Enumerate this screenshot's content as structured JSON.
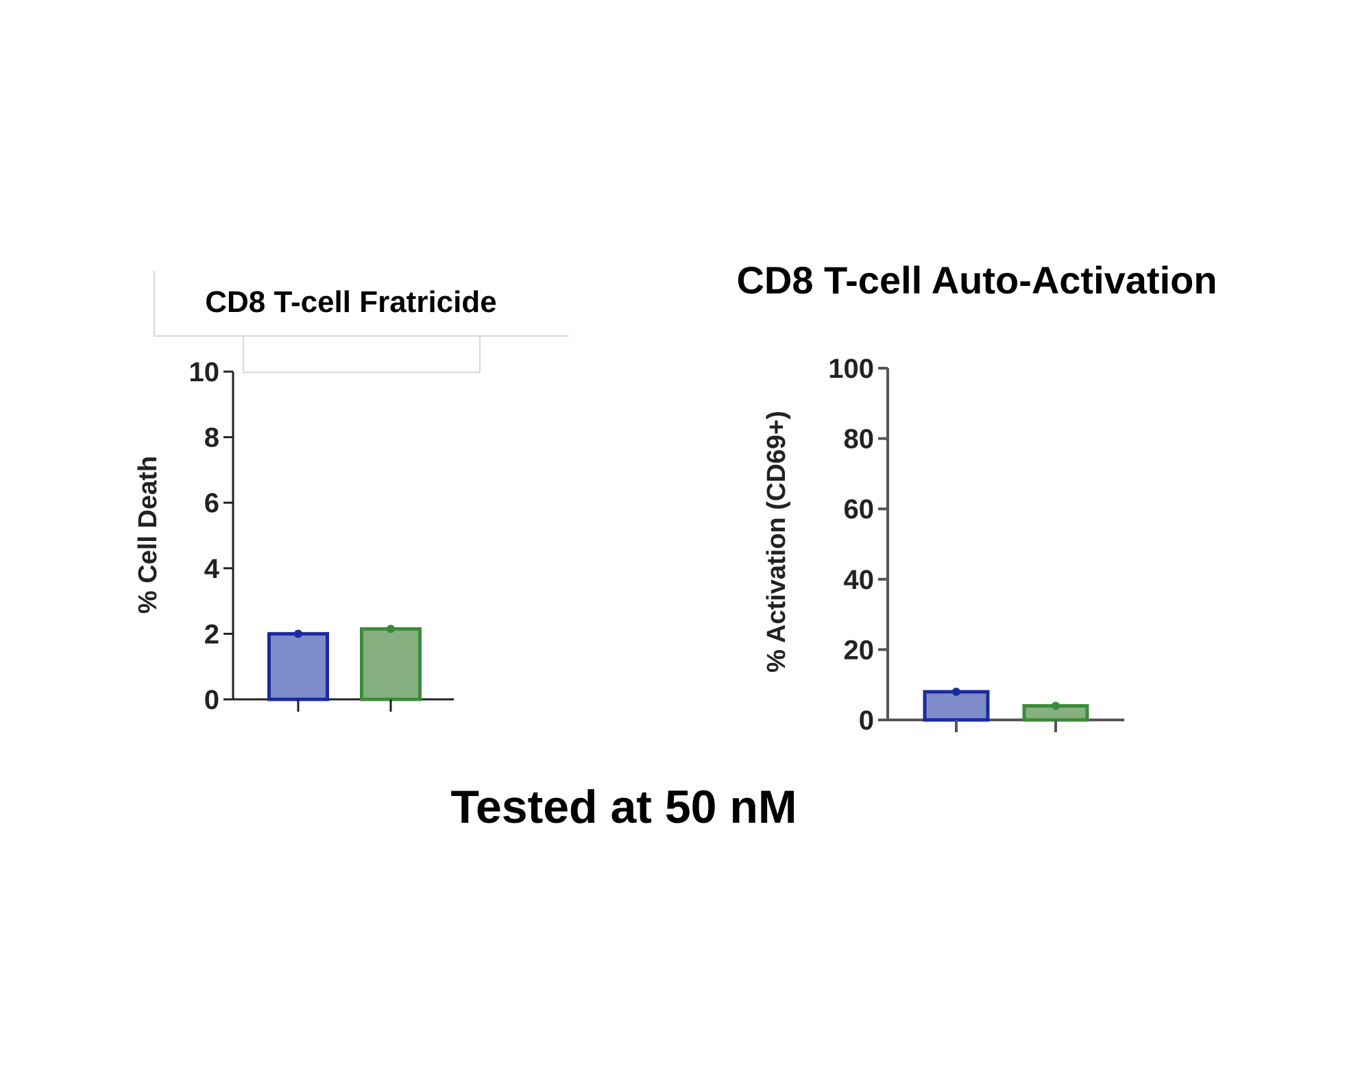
{
  "figure_caption": "Tested at 50 nM",
  "chart_data": [
    {
      "type": "bar",
      "title": "CD8 T-cell Fratricide",
      "xlabel": "",
      "ylabel": "% Cell Death",
      "ylim": [
        0,
        10
      ],
      "yticks": [
        0,
        2,
        4,
        6,
        8,
        10
      ],
      "categories": [
        "",
        ""
      ],
      "values": [
        2.0,
        2.15
      ],
      "bar_fills": [
        "#7e8cc9",
        "#86b07f"
      ],
      "bar_strokes": [
        "#1a2aa0",
        "#3c8a3a"
      ],
      "grid": false
    },
    {
      "type": "bar",
      "title": "CD8 T-cell Auto-Activation",
      "xlabel": "",
      "ylabel": "% Activation (CD69+)",
      "ylim": [
        0,
        100
      ],
      "yticks": [
        0,
        20,
        40,
        60,
        80,
        100
      ],
      "categories": [
        "",
        ""
      ],
      "values": [
        8,
        4
      ],
      "bar_fills": [
        "#7e8cc9",
        "#86b07f"
      ],
      "bar_strokes": [
        "#1a2aa0",
        "#3c8a3a"
      ],
      "grid": false
    }
  ]
}
